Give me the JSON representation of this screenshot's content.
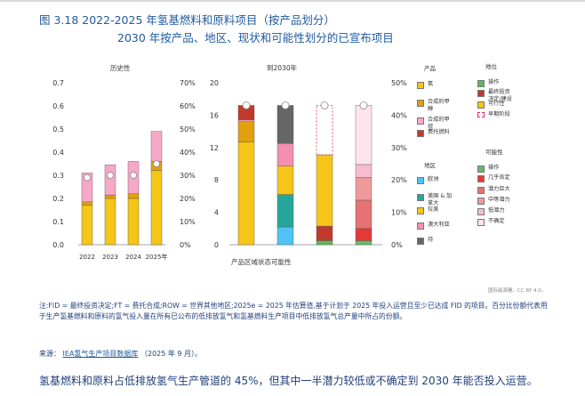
{
  "header": {
    "title_line1": "图 3.18 2022-2025 年氢基燃料和原料项目（按产品划分）",
    "title_line2": "2030 年按产品、地区、现状和可能性划分的已宣布项目"
  },
  "colors": {
    "ammonia": "#f5c518",
    "synthetic_methanol": "#e0a010",
    "synthetic_methane": "#f7a8c8",
    "efuels": "#c0392b",
    "europe": "#4fc3f7",
    "usa": "#26a69a",
    "latam": "#f5c518",
    "australia": "#f48fb1",
    "other": "#666666",
    "operating": "#5cb85c",
    "fid": "#c0392b",
    "feasible": "#f5c518",
    "early": "#e91e63",
    "certain": "#66bb6a",
    "almost": "#e53935",
    "large_potential": "#e57373",
    "medium_potential": "#ef9a9a",
    "low_potential": "#f8bbd0",
    "uncertain": "#fde4ec"
  },
  "chart_data": [
    {
      "type": "bar",
      "title": "历史性",
      "categories": [
        "2022",
        "2023",
        "2024",
        "2025年"
      ],
      "ylim": [
        0,
        0.7
      ],
      "yticks": [
        "0.0",
        "0.1",
        "0.2",
        "0.3",
        "0.4",
        "0.5",
        "0.6",
        "0.7"
      ],
      "y2ticks": [
        "0%",
        "10%",
        "20%",
        "30%",
        "40%",
        "50%",
        "60%",
        "70%"
      ],
      "series": [
        {
          "name": "氨",
          "color_key": "ammonia",
          "values": [
            0.17,
            0.2,
            0.2,
            0.32
          ]
        },
        {
          "name": "合成的甲醇",
          "color_key": "synthetic_methanol",
          "values": [
            0.015,
            0.015,
            0.02,
            0.04
          ]
        },
        {
          "name": "合成的甲烷",
          "color_key": "synthetic_methane",
          "values": [
            0.125,
            0.13,
            0.14,
            0.13
          ]
        }
      ],
      "share_markers": [
        0.29,
        0.3,
        0.3,
        0.35
      ]
    },
    {
      "type": "bar",
      "title": "到2030年",
      "xlabel": "产品区域状态可能性",
      "ylim": [
        0,
        20
      ],
      "yticks": [
        "0",
        "4",
        "8",
        "12",
        "16",
        "20"
      ],
      "y2ticks": [
        "0%",
        "10%",
        "20%",
        "30%",
        "40%",
        "50%"
      ],
      "bars": [
        {
          "group": "产品",
          "segments": [
            {
              "color_key": "ammonia",
              "value": 12.7
            },
            {
              "color_key": "synthetic_methanol",
              "value": 2.5
            },
            {
              "color_key": "synthetic_methane",
              "value": 0.2
            },
            {
              "color_key": "efuels",
              "value": 1.8
            }
          ],
          "marker": 17.2
        },
        {
          "group": "地区",
          "segments": [
            {
              "color_key": "europe",
              "value": 2.2
            },
            {
              "color_key": "usa",
              "value": 4.0
            },
            {
              "color_key": "latam",
              "value": 3.5
            },
            {
              "color_key": "australia",
              "value": 2.8
            },
            {
              "color_key": "other",
              "value": 4.7
            }
          ],
          "marker": 17.2
        },
        {
          "group": "状态",
          "segments": [
            {
              "color_key": "operating",
              "value": 0.5
            },
            {
              "color_key": "fid",
              "value": 1.8
            },
            {
              "color_key": "feasible",
              "value": 8.8
            }
          ],
          "dashed_top": 17.2,
          "marker": 17.2
        },
        {
          "group": "可能性",
          "segments": [
            {
              "color_key": "certain",
              "value": 0.5
            },
            {
              "color_key": "almost",
              "value": 1.5
            },
            {
              "color_key": "large_potential",
              "value": 3.5
            },
            {
              "color_key": "medium_potential",
              "value": 2.8
            },
            {
              "color_key": "low_potential",
              "value": 1.6
            },
            {
              "color_key": "uncertain",
              "value": 7.3
            }
          ],
          "marker": 17.2
        }
      ]
    }
  ],
  "legend": {
    "product": {
      "title": "产品",
      "items": [
        {
          "label": "氨",
          "color_key": "ammonia"
        },
        {
          "label": "合成的甲醇",
          "color_key": "synthetic_methanol"
        },
        {
          "label": "合成的甲烷",
          "color_key": "synthetic_methane"
        },
        {
          "label": "费托燃料",
          "color_key": "efuels"
        }
      ]
    },
    "region": {
      "title": "地区",
      "items": [
        {
          "label": "欧洲",
          "color_key": "europe"
        },
        {
          "label": "美国 & 加拿大",
          "color_key": "usa"
        },
        {
          "label": "拉美",
          "color_key": "latam"
        },
        {
          "label": "澳大利亚",
          "color_key": "australia"
        },
        {
          "label": "持",
          "color_key": "other"
        }
      ]
    },
    "status": {
      "title": "地位",
      "items": [
        {
          "label": "操作",
          "color_key": "operating"
        },
        {
          "label": "最终投资决定/建设",
          "color_key": "fid"
        },
        {
          "label": "可行性",
          "color_key": "feasible"
        },
        {
          "label": "早期阶段",
          "color_key": "early",
          "dashed": true
        }
      ]
    },
    "likelihood": {
      "title": "可能性",
      "items": [
        {
          "label": "操作",
          "color_key": "certain"
        },
        {
          "label": "几乎肯定",
          "color_key": "almost"
        },
        {
          "label": "潜力巨大",
          "color_key": "large_potential"
        },
        {
          "label": "中等潜力",
          "color_key": "medium_potential"
        },
        {
          "label": "低潜力",
          "color_key": "low_potential"
        },
        {
          "label": "不确定",
          "color_key": "uncertain"
        }
      ]
    }
  },
  "credit": "国际能源署。CC BY 4.0。",
  "notes": {
    "text": "注:FID = 最终投资决定;FT = 费托合成;ROW = 世界其他地区;2025e = 2025 年估算值,基于计划于 2025 年投入运营且至少已达成 FID 的项目。百分比份额代表用于生产氢基燃料和原料的氢气投入量在所有已公布的低排放氢气和氢基燃料生产项目中低排放氢气总产量中所占的份额。",
    "source_label": "来源：",
    "source_link": "IEA氢气生产项目数据库",
    "source_date": "（2025 年 9 月）。"
  },
  "footer": "氢基燃料和原料占低排放氢气生产管道的 45%，但其中一半潜力较低或不确定到 2030 年能否投入运营。"
}
